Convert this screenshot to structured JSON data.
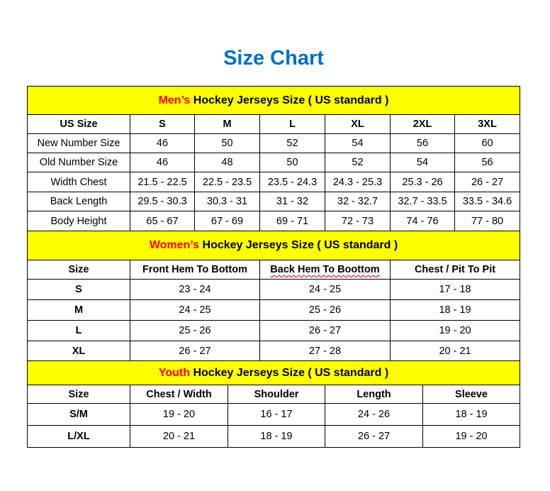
{
  "title": "Size Chart",
  "colors": {
    "title": "#0070C0",
    "banner_bg": "#FFFF00",
    "banner_accent": "#FF0000"
  },
  "mens": {
    "banner_accent": "Men’s",
    "banner_rest": " Hockey Jerseys Size ( US standard )",
    "headers": [
      "US Size",
      "S",
      "M",
      "L",
      "XL",
      "2XL",
      "3XL"
    ],
    "rows": [
      [
        "New Number Size",
        "46",
        "50",
        "52",
        "54",
        "56",
        "60"
      ],
      [
        "Old Number Size",
        "46",
        "48",
        "50",
        "52",
        "54",
        "56"
      ],
      [
        "Width Chest",
        "21.5 - 22.5",
        "22.5 - 23.5",
        "23.5 - 24.3",
        "24.3 - 25.3",
        "25.3 - 26",
        "26 - 27"
      ],
      [
        "Back Length",
        "29.5 - 30.3",
        "30.3 - 31",
        "31 - 32",
        "32 - 32.7",
        "32.7 - 33.5",
        "33.5 - 34.6"
      ],
      [
        "Body Height",
        "65 - 67",
        "67 - 69",
        "69 - 71",
        "72 - 73",
        "74 - 76",
        "77 - 80"
      ]
    ]
  },
  "womens": {
    "banner_accent": "Women’s",
    "banner_rest": " Hockey Jerseys Size ( US standard )",
    "headers": [
      "Size",
      "Front Hem To Bottom",
      "Back Hem To Boottom",
      "Chest / Pit To Pit"
    ],
    "rows": [
      [
        "S",
        "23 - 24",
        "24 - 25",
        "17 - 18"
      ],
      [
        "M",
        "24 - 25",
        "25 - 26",
        "18 - 19"
      ],
      [
        "L",
        "25 - 26",
        "26 - 27",
        "19 - 20"
      ],
      [
        "XL",
        "26 - 27",
        "27 - 28",
        "20 - 21"
      ]
    ]
  },
  "youth": {
    "banner_accent": "Youth",
    "banner_rest": " Hockey Jerseys Size ( US standard )",
    "headers": [
      "Size",
      "Chest / Width",
      "Shoulder",
      "Length",
      "Sleeve"
    ],
    "rows": [
      [
        "S/M",
        "19 - 20",
        "16 - 17",
        "24 - 26",
        "18 - 19"
      ],
      [
        "L/XL",
        "20 - 21",
        "18 - 19",
        "26 - 27",
        "19 - 20"
      ]
    ]
  }
}
